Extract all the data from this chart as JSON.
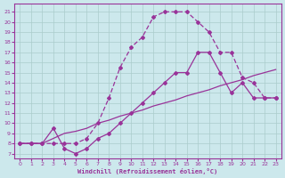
{
  "xlabel": "Windchill (Refroidissement éolien,°C)",
  "background_color": "#cce8ec",
  "grid_color": "#aacccc",
  "line_color": "#993399",
  "xlim": [
    -0.5,
    23.5
  ],
  "ylim": [
    6.5,
    21.8
  ],
  "xticks": [
    0,
    1,
    2,
    3,
    4,
    5,
    6,
    7,
    8,
    9,
    10,
    11,
    12,
    13,
    14,
    15,
    16,
    17,
    18,
    19,
    20,
    21,
    22,
    23
  ],
  "yticks": [
    7,
    8,
    9,
    10,
    11,
    12,
    13,
    14,
    15,
    16,
    17,
    18,
    19,
    20,
    21
  ],
  "line1_x": [
    0,
    1,
    2,
    3,
    4,
    5,
    6,
    7,
    8,
    9,
    10,
    11,
    12,
    13,
    14,
    15,
    16,
    17,
    18,
    19,
    20,
    21,
    22,
    23
  ],
  "line1_y": [
    8,
    8,
    8,
    9.5,
    7.5,
    7.0,
    7.5,
    8.5,
    9.0,
    10.0,
    11.0,
    12.0,
    13.0,
    14.0,
    15.0,
    15.0,
    17.0,
    17.0,
    15.0,
    13.0,
    14.0,
    12.5,
    12.5,
    12.5
  ],
  "line2_x": [
    0,
    1,
    2,
    3,
    4,
    5,
    6,
    7,
    8,
    9,
    10,
    11,
    12,
    13,
    14,
    15,
    16,
    17,
    18,
    19,
    20,
    21,
    22,
    23
  ],
  "line2_y": [
    8.0,
    8.0,
    8.0,
    8.5,
    9.0,
    9.2,
    9.5,
    10.0,
    10.3,
    10.7,
    11.0,
    11.3,
    11.7,
    12.0,
    12.3,
    12.7,
    13.0,
    13.3,
    13.7,
    14.0,
    14.3,
    14.7,
    15.0,
    15.3
  ],
  "line3_x": [
    0,
    1,
    2,
    3,
    4,
    5,
    6,
    7,
    8,
    9,
    10,
    11,
    12,
    13,
    14,
    15,
    16,
    17,
    18,
    19,
    20,
    21,
    22,
    23
  ],
  "line3_y": [
    8,
    8,
    8,
    8,
    8,
    8,
    8.5,
    10,
    12.5,
    15.5,
    17.5,
    18.5,
    20.5,
    21.0,
    21.0,
    21.0,
    20.0,
    19.0,
    17.0,
    17.0,
    14.5,
    14.0,
    12.5,
    12.5
  ]
}
